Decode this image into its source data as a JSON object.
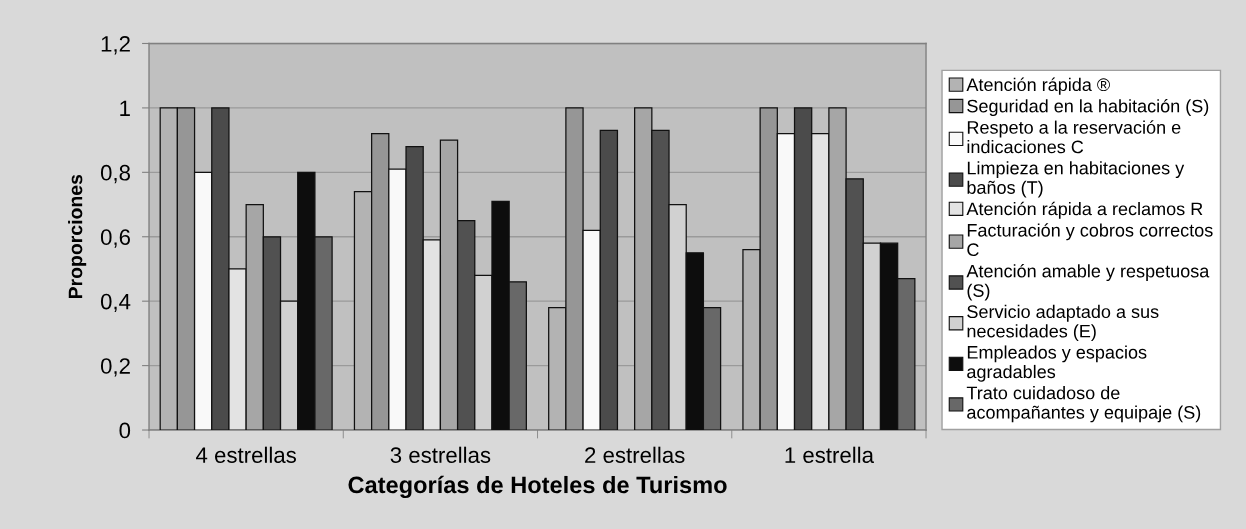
{
  "chart_data": {
    "type": "bar",
    "xlabel": "Categorías de Hoteles de Turismo",
    "ylabel": "Proporciones",
    "categories": [
      "4 estrellas",
      "3 estrellas",
      "2 estrellas",
      "1 estrella"
    ],
    "series": [
      {
        "name": "Atención rápida ®",
        "color": "#b3b3b3",
        "values": [
          1.0,
          0.74,
          0.38,
          0.56
        ]
      },
      {
        "name": "Seguridad en la habitación (S)",
        "color": "#969696",
        "values": [
          1.0,
          0.92,
          1.0,
          1.0
        ]
      },
      {
        "name": "Respeto a la reservación e indicaciones C",
        "color": "#f9f9f9",
        "values": [
          0.8,
          0.81,
          0.62,
          0.92
        ]
      },
      {
        "name": "Limpieza en habitaciones y baños (T)",
        "color": "#4b4b4b",
        "values": [
          1.0,
          0.88,
          0.93,
          1.0
        ]
      },
      {
        "name": "Atención rápida a reclamos R",
        "color": "#e3e3e3",
        "values": [
          0.5,
          0.59,
          null,
          0.92
        ]
      },
      {
        "name": "Facturación y cobros correctos C",
        "color": "#a6a6a6",
        "values": [
          0.7,
          0.9,
          1.0,
          1.0
        ]
      },
      {
        "name": "Atención amable y respetuosa (S)",
        "color": "#515151",
        "values": [
          0.6,
          0.65,
          0.93,
          0.78
        ]
      },
      {
        "name": "Servicio adaptado a sus necesidades (E)",
        "color": "#d1d1d1",
        "values": [
          0.4,
          0.48,
          0.7,
          0.58
        ]
      },
      {
        "name": "Empleados y espacios agradables",
        "color": "#0d0d0d",
        "values": [
          0.8,
          0.71,
          0.55,
          0.58
        ]
      },
      {
        "name": "Trato cuidadoso de acompañantes y equipaje (S)",
        "color": "#686868",
        "values": [
          0.6,
          0.46,
          0.38,
          0.47
        ]
      }
    ],
    "ylim": [
      0,
      1.2
    ],
    "yticks": [
      0,
      {
        "value": 0.2,
        "label": "0,2"
      },
      {
        "value": 0.4,
        "label": "0,4"
      },
      {
        "value": 0.6,
        "label": "0,6"
      },
      {
        "value": 0.8,
        "label": "0,8"
      },
      1,
      {
        "value": 1.2,
        "label": "1,2"
      }
    ],
    "grid": "y",
    "legend": "right"
  }
}
